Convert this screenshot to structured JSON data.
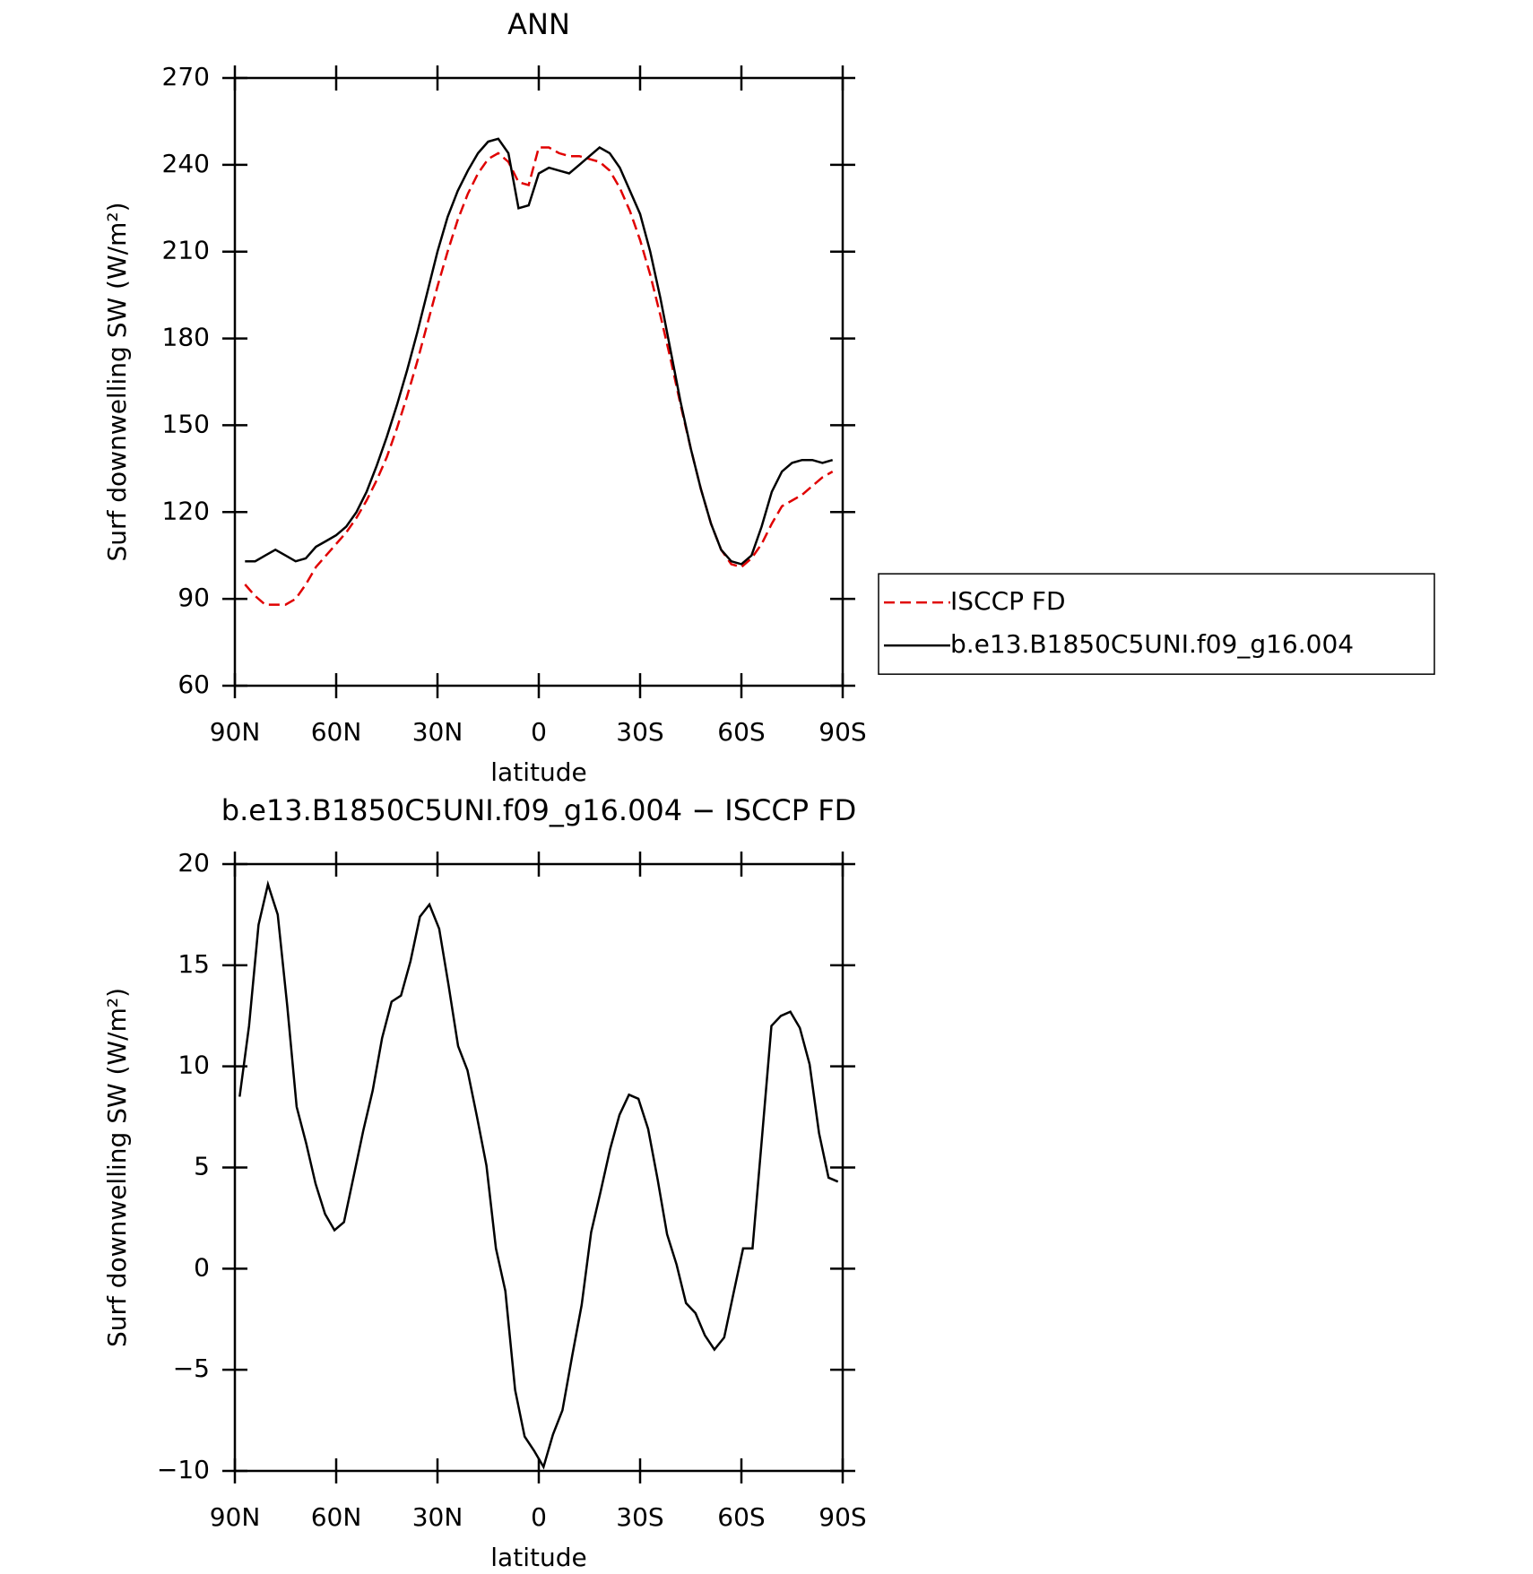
{
  "chart_data": [
    {
      "type": "line",
      "title": "ANN",
      "xlabel": "latitude",
      "ylabel": "Surf downwelling SW (W/m²)",
      "xlim": [
        90,
        -90
      ],
      "xticks": [
        {
          "value": 90,
          "label": "90N"
        },
        {
          "value": 60,
          "label": "60N"
        },
        {
          "value": 30,
          "label": "30N"
        },
        0,
        {
          "value": -30,
          "label": "30S"
        },
        {
          "value": -60,
          "label": "60S"
        },
        {
          "value": -90,
          "label": "90S"
        }
      ],
      "ylim": [
        60,
        270
      ],
      "yticks": [
        60,
        90,
        120,
        150,
        180,
        210,
        240,
        270
      ],
      "legend": "right",
      "x": [
        87,
        84,
        81,
        78,
        75,
        72,
        69,
        66,
        63,
        60,
        57,
        54,
        51,
        48,
        45,
        42,
        39,
        36,
        33,
        30,
        27,
        24,
        21,
        18,
        15,
        12,
        9,
        6,
        3,
        0,
        -3,
        -6,
        -9,
        -12,
        -15,
        -18,
        -21,
        -24,
        -27,
        -30,
        -33,
        -36,
        -39,
        -42,
        -45,
        -48,
        -51,
        -54,
        -57,
        -60,
        -63,
        -66,
        -69,
        -72,
        -75,
        -78,
        -81,
        -84,
        -87
      ],
      "series": [
        {
          "name": "ISCCP FD",
          "color": "#e00000",
          "dash": true,
          "values": [
            95,
            91,
            88,
            88,
            88,
            90,
            95,
            101,
            105,
            109,
            113,
            118,
            124,
            131,
            139,
            149,
            160,
            172,
            185,
            198,
            210,
            221,
            230,
            237,
            242,
            244,
            241,
            234,
            233,
            246,
            246,
            244,
            243,
            243,
            242,
            241,
            238,
            232,
            224,
            214,
            202,
            188,
            173,
            157,
            142,
            128,
            116,
            107,
            102,
            101,
            104,
            109,
            116,
            122,
            124,
            126,
            129,
            132,
            134
          ]
        },
        {
          "name": "b.e13.B1850C5UNI.f09_g16.004",
          "color": "#000000",
          "dash": false,
          "values": [
            103,
            103,
            105,
            107,
            105,
            103,
            104,
            108,
            110,
            112,
            115,
            120,
            127,
            136,
            146,
            157,
            169,
            182,
            196,
            210,
            222,
            231,
            238,
            244,
            248,
            249,
            244,
            225,
            226,
            237,
            239,
            238,
            237,
            240,
            243,
            246,
            244,
            239,
            231,
            223,
            210,
            194,
            176,
            158,
            142,
            128,
            116,
            107,
            103,
            102,
            105,
            115,
            127,
            134,
            137,
            138,
            138,
            137,
            138
          ]
        }
      ]
    },
    {
      "type": "line",
      "title": "b.e13.B1850C5UNI.f09_g16.004 − ISCCP FD",
      "xlabel": "latitude",
      "ylabel": "Surf downwelling SW (W/m²)",
      "xlim": [
        90,
        -90
      ],
      "xticks": [
        {
          "value": 90,
          "label": "90N"
        },
        {
          "value": 60,
          "label": "60N"
        },
        {
          "value": 30,
          "label": "30N"
        },
        0,
        {
          "value": -30,
          "label": "30S"
        },
        {
          "value": -60,
          "label": "60S"
        },
        {
          "value": -90,
          "label": "90S"
        }
      ],
      "ylim": [
        -10,
        20
      ],
      "yticks": [
        {
          "value": -10,
          "label": "−10"
        },
        {
          "value": -5,
          "label": "−5"
        },
        0,
        5,
        10,
        15,
        20
      ],
      "x": [
        88.6,
        85.8,
        83.0,
        80.2,
        77.3,
        74.5,
        71.7,
        68.9,
        66.1,
        63.3,
        60.5,
        57.7,
        54.9,
        52.0,
        49.2,
        46.4,
        43.6,
        40.8,
        38.0,
        35.2,
        32.4,
        29.5,
        26.7,
        23.9,
        21.1,
        18.3,
        15.5,
        12.7,
        9.9,
        7.0,
        4.2,
        1.4,
        -1.4,
        -4.2,
        -7.0,
        -9.9,
        -12.7,
        -15.5,
        -18.3,
        -21.1,
        -23.9,
        -26.7,
        -29.5,
        -32.4,
        -35.2,
        -38.0,
        -40.8,
        -43.6,
        -46.4,
        -49.2,
        -52.0,
        -54.9,
        -57.7,
        -60.5,
        -63.3,
        -66.1,
        -68.9,
        -71.7,
        -74.5,
        -77.3,
        -80.2,
        -83.0,
        -85.8,
        -88.6
      ],
      "series": [
        {
          "color": "#000000",
          "dash": false,
          "values": [
            8.5,
            12,
            17,
            19,
            17.5,
            13,
            8,
            6.2,
            4.2,
            2.7,
            1.9,
            2.3,
            4.5,
            6.8,
            8.8,
            11.4,
            13.2,
            13.5,
            15.2,
            17.4,
            18,
            16.8,
            14,
            11,
            9.8,
            7.5,
            5.1,
            1,
            -1.1,
            -6,
            -8.3,
            -9,
            -9.8,
            -8.2,
            -7,
            -4.3,
            -1.8,
            1.8,
            3.8,
            5.9,
            7.6,
            8.6,
            8.4,
            6.9,
            4.4,
            1.7,
            0.2,
            -1.7,
            -2.2,
            -3.3,
            -4,
            -3.4,
            -1.2,
            1,
            1,
            6.5,
            12,
            12.5,
            12.7,
            11.9,
            10.1,
            6.7,
            4.5,
            4.3
          ]
        }
      ]
    }
  ]
}
